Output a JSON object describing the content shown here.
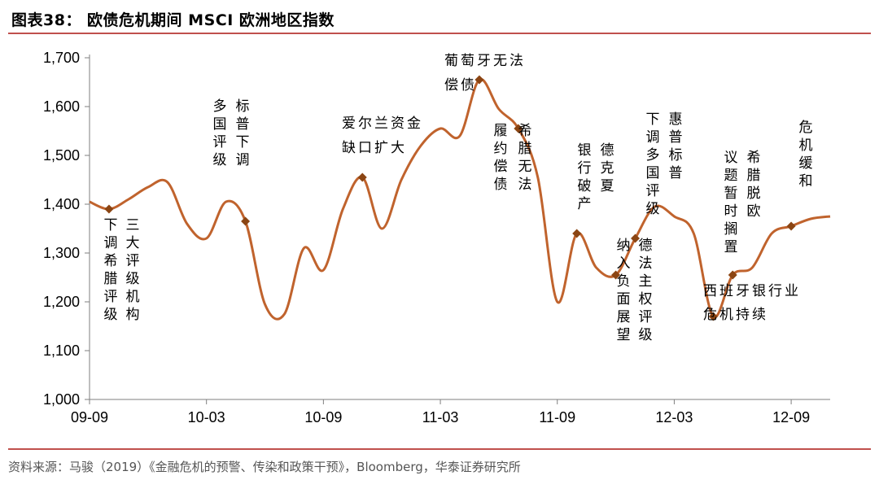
{
  "header": {
    "title": "图表38： 欧债危机期间 MSCI 欧洲地区指数"
  },
  "footer": {
    "source": "资料来源：马骏（2019）《金融危机的预警、传染和政策干预》，Bloomberg，华泰证券研究所"
  },
  "colors": {
    "line": "#c0632d",
    "marker": "#8b4513",
    "rule": "#c0504d"
  },
  "chart_data": {
    "type": "line",
    "title": "欧债危机期间 MSCI 欧洲地区指数",
    "xlabel": "",
    "ylabel": "",
    "ylim": [
      1000,
      1700
    ],
    "y_ticks": [
      1000,
      1100,
      1200,
      1300,
      1400,
      1500,
      1600,
      1700
    ],
    "y_tick_labels": [
      "1,000",
      "1,100",
      "1,200",
      "1,300",
      "1,400",
      "1,500",
      "1,600",
      "1,700"
    ],
    "x_range": [
      "2009-09",
      "2012-11"
    ],
    "x_ticks": [
      "09-09",
      "10-03",
      "10-09",
      "11-03",
      "11-09",
      "12-03",
      "12-09"
    ],
    "grid": false,
    "series": [
      {
        "points": [
          [
            "2009-09",
            1405
          ],
          [
            "2009-10",
            1390
          ],
          [
            "2009-11",
            1410
          ],
          [
            "2009-12",
            1435
          ],
          [
            "2010-01",
            1445
          ],
          [
            "2010-02",
            1360
          ],
          [
            "2010-03",
            1330
          ],
          [
            "2010-04",
            1405
          ],
          [
            "2010-05",
            1365
          ],
          [
            "2010-06",
            1195
          ],
          [
            "2010-07",
            1175
          ],
          [
            "2010-08",
            1310
          ],
          [
            "2010-09",
            1265
          ],
          [
            "2010-10",
            1390
          ],
          [
            "2010-11",
            1455
          ],
          [
            "2010-12",
            1350
          ],
          [
            "2011-01",
            1450
          ],
          [
            "2011-02",
            1520
          ],
          [
            "2011-03",
            1555
          ],
          [
            "2011-04",
            1540
          ],
          [
            "2011-05",
            1655
          ],
          [
            "2011-06",
            1595
          ],
          [
            "2011-07",
            1555
          ],
          [
            "2011-08",
            1455
          ],
          [
            "2011-09",
            1200
          ],
          [
            "2011-10",
            1340
          ],
          [
            "2011-11",
            1270
          ],
          [
            "2011-12",
            1255
          ],
          [
            "2012-01",
            1330
          ],
          [
            "2012-02",
            1395
          ],
          [
            "2012-03",
            1375
          ],
          [
            "2012-04",
            1340
          ],
          [
            "2012-05",
            1170
          ],
          [
            "2012-06",
            1255
          ],
          [
            "2012-07",
            1270
          ],
          [
            "2012-08",
            1340
          ],
          [
            "2012-09",
            1355
          ],
          [
            "2012-10",
            1370
          ],
          [
            "2012-11",
            1375
          ]
        ]
      }
    ],
    "event_markers": [
      {
        "date": "2009-10",
        "value": 1390,
        "label_lines": [
          "下调希腊评级",
          "三大评级机构"
        ]
      },
      {
        "date": "2010-05",
        "value": 1365,
        "label_lines": [
          "多国评级",
          "标普下调"
        ]
      },
      {
        "date": "2010-11",
        "value": 1455,
        "label_lines": [
          "爱尔兰资金",
          "缺口扩大"
        ]
      },
      {
        "date": "2011-05",
        "value": 1655,
        "label_lines": [
          "葡萄牙无法",
          "偿债"
        ]
      },
      {
        "date": "2011-07",
        "value": 1555,
        "label_lines": [
          "履约偿债",
          "希腊无法"
        ]
      },
      {
        "date": "2011-10",
        "value": 1340,
        "label_lines": [
          "银行破产",
          "德克夏"
        ]
      },
      {
        "date": "2011-12",
        "value": 1255,
        "label_lines": [
          "纳入负面展望",
          "德法主权评级"
        ]
      },
      {
        "date": "2012-01",
        "value": 1330,
        "label_lines": [
          "下调多国评级",
          "惠普标普"
        ]
      },
      {
        "date": "2012-05",
        "value": 1170,
        "label_lines": [
          "议题暂时搁置",
          "希腊脱欧"
        ]
      },
      {
        "date": "2012-06",
        "value": 1255,
        "label_lines": [
          "西班牙银行业",
          "危机持续"
        ]
      },
      {
        "date": "2012-09",
        "value": 1355,
        "label_lines": [
          "危机缓和"
        ]
      }
    ]
  }
}
